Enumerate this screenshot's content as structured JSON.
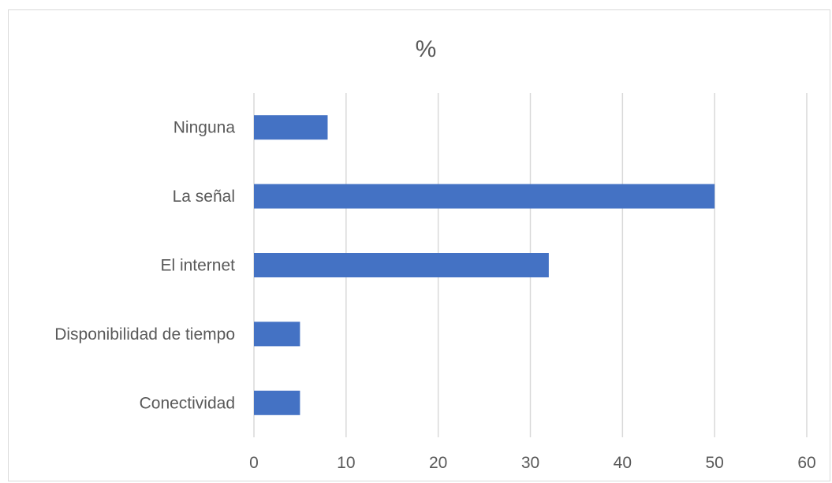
{
  "chart_data": {
    "type": "bar",
    "orientation": "horizontal",
    "title": "%",
    "categories": [
      "Ninguna",
      "La señal",
      "El internet",
      "Disponibilidad de tiempo",
      "Conectividad"
    ],
    "values": [
      8,
      50,
      32,
      5,
      5
    ],
    "x_ticks": [
      "0",
      "10",
      "20",
      "30",
      "40",
      "50",
      "60"
    ],
    "xlim": [
      0,
      60
    ],
    "grid": "vertical",
    "legend": "none",
    "bar_color": "#4472c4",
    "grid_color": "#d9d9d9",
    "text_color": "#595959"
  }
}
